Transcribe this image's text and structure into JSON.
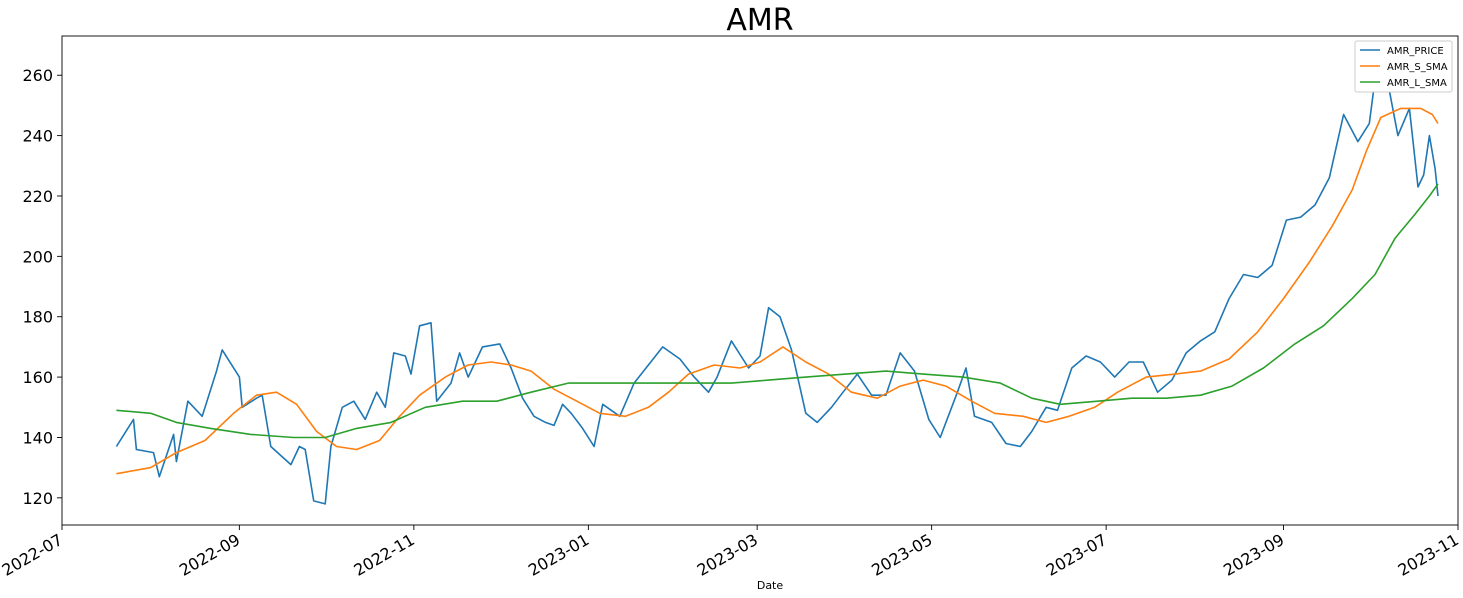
{
  "chart_data": {
    "type": "line",
    "title": "AMR",
    "xlabel": "Date",
    "ylabel": "",
    "xlim": [
      "2022-07-01",
      "2023-11-01"
    ],
    "ylim": [
      111,
      273
    ],
    "grid": false,
    "legend_position": "top-right",
    "x_ticks": [
      "2022-07",
      "2022-09",
      "2022-11",
      "2023-01",
      "2023-03",
      "2023-05",
      "2023-07",
      "2023-09",
      "2023-11"
    ],
    "y_ticks": [
      120,
      140,
      160,
      180,
      200,
      220,
      240,
      260
    ],
    "series": [
      {
        "name": "AMR_PRICE",
        "color": "#1f77b4",
        "points": [
          [
            "2022-07-20",
            137
          ],
          [
            "2022-07-26",
            146
          ],
          [
            "2022-07-27",
            136
          ],
          [
            "2022-08-02",
            135
          ],
          [
            "2022-08-04",
            127
          ],
          [
            "2022-08-09",
            141
          ],
          [
            "2022-08-10",
            132
          ],
          [
            "2022-08-14",
            152
          ],
          [
            "2022-08-19",
            147
          ],
          [
            "2022-08-24",
            162
          ],
          [
            "2022-08-26",
            169
          ],
          [
            "2022-09-01",
            160
          ],
          [
            "2022-09-02",
            150
          ],
          [
            "2022-09-07",
            153
          ],
          [
            "2022-09-09",
            154
          ],
          [
            "2022-09-12",
            137
          ],
          [
            "2022-09-19",
            131
          ],
          [
            "2022-09-22",
            137
          ],
          [
            "2022-09-24",
            136
          ],
          [
            "2022-09-27",
            119
          ],
          [
            "2022-10-01",
            118
          ],
          [
            "2022-10-03",
            137
          ],
          [
            "2022-10-07",
            150
          ],
          [
            "2022-10-11",
            152
          ],
          [
            "2022-10-15",
            146
          ],
          [
            "2022-10-19",
            155
          ],
          [
            "2022-10-22",
            150
          ],
          [
            "2022-10-25",
            168
          ],
          [
            "2022-10-29",
            167
          ],
          [
            "2022-10-31",
            161
          ],
          [
            "2022-11-03",
            177
          ],
          [
            "2022-11-07",
            178
          ],
          [
            "2022-11-09",
            152
          ],
          [
            "2022-11-14",
            158
          ],
          [
            "2022-11-17",
            168
          ],
          [
            "2022-11-20",
            160
          ],
          [
            "2022-11-25",
            170
          ],
          [
            "2022-12-01",
            171
          ],
          [
            "2022-12-05",
            163
          ],
          [
            "2022-12-09",
            153
          ],
          [
            "2022-12-13",
            147
          ],
          [
            "2022-12-17",
            145
          ],
          [
            "2022-12-20",
            144
          ],
          [
            "2022-12-23",
            151
          ],
          [
            "2022-12-26",
            148
          ],
          [
            "2022-12-30",
            143
          ],
          [
            "2023-01-03",
            137
          ],
          [
            "2023-01-06",
            151
          ],
          [
            "2023-01-12",
            147
          ],
          [
            "2023-01-17",
            158
          ],
          [
            "2023-01-22",
            164
          ],
          [
            "2023-01-27",
            170
          ],
          [
            "2023-02-02",
            166
          ],
          [
            "2023-02-07",
            160
          ],
          [
            "2023-02-12",
            155
          ],
          [
            "2023-02-15",
            160
          ],
          [
            "2023-02-20",
            172
          ],
          [
            "2023-02-26",
            163
          ],
          [
            "2023-03-02",
            167
          ],
          [
            "2023-03-05",
            183
          ],
          [
            "2023-03-09",
            180
          ],
          [
            "2023-03-13",
            169
          ],
          [
            "2023-03-18",
            148
          ],
          [
            "2023-03-22",
            145
          ],
          [
            "2023-03-27",
            150
          ],
          [
            "2023-03-31",
            155
          ],
          [
            "2023-04-05",
            161
          ],
          [
            "2023-04-10",
            154
          ],
          [
            "2023-04-15",
            154
          ],
          [
            "2023-04-20",
            168
          ],
          [
            "2023-04-25",
            162
          ],
          [
            "2023-04-30",
            146
          ],
          [
            "2023-05-04",
            140
          ],
          [
            "2023-05-10",
            155
          ],
          [
            "2023-05-13",
            163
          ],
          [
            "2023-05-16",
            147
          ],
          [
            "2023-05-22",
            145
          ],
          [
            "2023-05-27",
            138
          ],
          [
            "2023-06-01",
            137
          ],
          [
            "2023-06-05",
            142
          ],
          [
            "2023-06-10",
            150
          ],
          [
            "2023-06-14",
            149
          ],
          [
            "2023-06-19",
            163
          ],
          [
            "2023-06-24",
            167
          ],
          [
            "2023-06-29",
            165
          ],
          [
            "2023-07-04",
            160
          ],
          [
            "2023-07-09",
            165
          ],
          [
            "2023-07-14",
            165
          ],
          [
            "2023-07-19",
            155
          ],
          [
            "2023-07-24",
            159
          ],
          [
            "2023-07-29",
            168
          ],
          [
            "2023-08-03",
            172
          ],
          [
            "2023-08-08",
            175
          ],
          [
            "2023-08-13",
            186
          ],
          [
            "2023-08-18",
            194
          ],
          [
            "2023-08-23",
            193
          ],
          [
            "2023-08-28",
            197
          ],
          [
            "2023-09-02",
            212
          ],
          [
            "2023-09-07",
            213
          ],
          [
            "2023-09-12",
            217
          ],
          [
            "2023-09-17",
            226
          ],
          [
            "2023-09-22",
            247
          ],
          [
            "2023-09-27",
            238
          ],
          [
            "2023-10-01",
            244
          ],
          [
            "2023-10-04",
            266
          ],
          [
            "2023-10-08",
            255
          ],
          [
            "2023-10-11",
            240
          ],
          [
            "2023-10-15",
            249
          ],
          [
            "2023-10-18",
            223
          ],
          [
            "2023-10-20",
            227
          ],
          [
            "2023-10-22",
            240
          ],
          [
            "2023-10-24",
            229
          ],
          [
            "2023-10-25",
            220
          ]
        ]
      },
      {
        "name": "AMR_S_SMA",
        "color": "#ff7f0e",
        "points": [
          [
            "2022-07-20",
            128
          ],
          [
            "2022-08-01",
            130
          ],
          [
            "2022-08-10",
            135
          ],
          [
            "2022-08-20",
            139
          ],
          [
            "2022-08-30",
            148
          ],
          [
            "2022-09-07",
            154
          ],
          [
            "2022-09-14",
            155
          ],
          [
            "2022-09-21",
            151
          ],
          [
            "2022-09-28",
            142
          ],
          [
            "2022-10-05",
            137
          ],
          [
            "2022-10-12",
            136
          ],
          [
            "2022-10-20",
            139
          ],
          [
            "2022-10-27",
            147
          ],
          [
            "2022-11-03",
            154
          ],
          [
            "2022-11-12",
            160
          ],
          [
            "2022-11-20",
            164
          ],
          [
            "2022-11-28",
            165
          ],
          [
            "2022-12-05",
            164
          ],
          [
            "2022-12-12",
            162
          ],
          [
            "2022-12-20",
            156
          ],
          [
            "2022-12-28",
            152
          ],
          [
            "2023-01-05",
            148
          ],
          [
            "2023-01-14",
            147
          ],
          [
            "2023-01-22",
            150
          ],
          [
            "2023-01-29",
            155
          ],
          [
            "2023-02-05",
            161
          ],
          [
            "2023-02-14",
            164
          ],
          [
            "2023-02-23",
            163
          ],
          [
            "2023-03-02",
            165
          ],
          [
            "2023-03-10",
            170
          ],
          [
            "2023-03-18",
            165
          ],
          [
            "2023-03-26",
            161
          ],
          [
            "2023-04-03",
            155
          ],
          [
            "2023-04-12",
            153
          ],
          [
            "2023-04-20",
            157
          ],
          [
            "2023-04-28",
            159
          ],
          [
            "2023-05-06",
            157
          ],
          [
            "2023-05-15",
            152
          ],
          [
            "2023-05-23",
            148
          ],
          [
            "2023-06-02",
            147
          ],
          [
            "2023-06-10",
            145
          ],
          [
            "2023-06-18",
            147
          ],
          [
            "2023-06-27",
            150
          ],
          [
            "2023-07-05",
            155
          ],
          [
            "2023-07-15",
            160
          ],
          [
            "2023-07-25",
            161
          ],
          [
            "2023-08-03",
            162
          ],
          [
            "2023-08-13",
            166
          ],
          [
            "2023-08-23",
            175
          ],
          [
            "2023-09-01",
            186
          ],
          [
            "2023-09-10",
            198
          ],
          [
            "2023-09-18",
            210
          ],
          [
            "2023-09-25",
            222
          ],
          [
            "2023-09-30",
            235
          ],
          [
            "2023-10-05",
            246
          ],
          [
            "2023-10-12",
            249
          ],
          [
            "2023-10-19",
            249
          ],
          [
            "2023-10-23",
            247
          ],
          [
            "2023-10-25",
            244
          ]
        ]
      },
      {
        "name": "AMR_L_SMA",
        "color": "#2ca02c",
        "points": [
          [
            "2022-07-20",
            149
          ],
          [
            "2022-08-01",
            148
          ],
          [
            "2022-08-10",
            145
          ],
          [
            "2022-08-22",
            143
          ],
          [
            "2022-09-05",
            141
          ],
          [
            "2022-09-20",
            140
          ],
          [
            "2022-10-01",
            140
          ],
          [
            "2022-10-12",
            143
          ],
          [
            "2022-10-24",
            145
          ],
          [
            "2022-11-05",
            150
          ],
          [
            "2022-11-18",
            152
          ],
          [
            "2022-11-30",
            152
          ],
          [
            "2022-12-12",
            155
          ],
          [
            "2022-12-25",
            158
          ],
          [
            "2023-01-08",
            158
          ],
          [
            "2023-01-22",
            158
          ],
          [
            "2023-02-05",
            158
          ],
          [
            "2023-02-20",
            158
          ],
          [
            "2023-03-05",
            159
          ],
          [
            "2023-03-18",
            160
          ],
          [
            "2023-04-01",
            161
          ],
          [
            "2023-04-15",
            162
          ],
          [
            "2023-04-28",
            161
          ],
          [
            "2023-05-12",
            160
          ],
          [
            "2023-05-25",
            158
          ],
          [
            "2023-06-05",
            153
          ],
          [
            "2023-06-15",
            151
          ],
          [
            "2023-06-28",
            152
          ],
          [
            "2023-07-10",
            153
          ],
          [
            "2023-07-22",
            153
          ],
          [
            "2023-08-03",
            154
          ],
          [
            "2023-08-14",
            157
          ],
          [
            "2023-08-25",
            163
          ],
          [
            "2023-09-05",
            171
          ],
          [
            "2023-09-15",
            177
          ],
          [
            "2023-09-25",
            186
          ],
          [
            "2023-10-03",
            194
          ],
          [
            "2023-10-10",
            206
          ],
          [
            "2023-10-17",
            214
          ],
          [
            "2023-10-22",
            220
          ],
          [
            "2023-10-25",
            224
          ]
        ]
      }
    ]
  }
}
